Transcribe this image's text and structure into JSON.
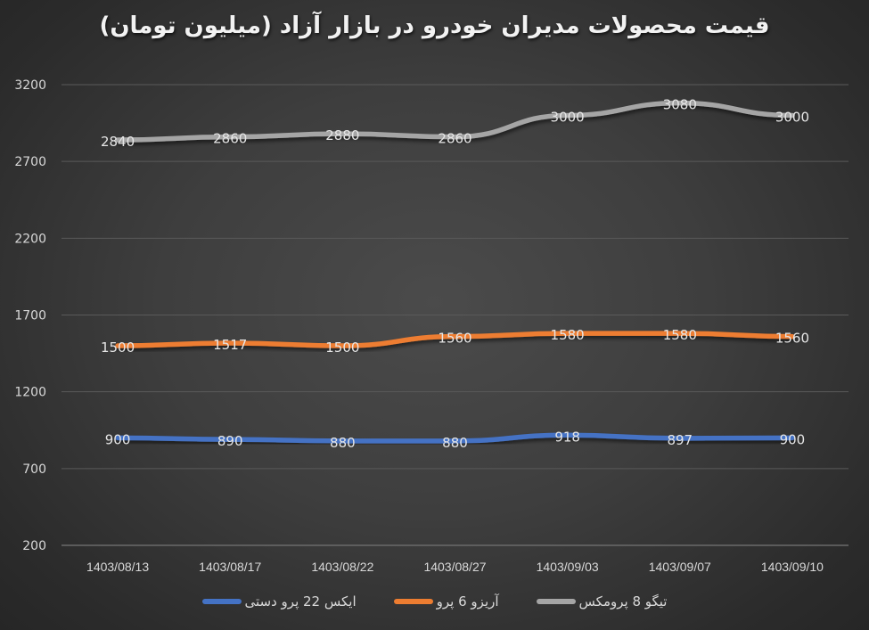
{
  "chart_data": {
    "type": "line",
    "title": "قیمت محصولات مدیران خودرو در بازار آزاد (میلیون تومان)",
    "xlabel": "",
    "ylabel": "",
    "categories": [
      "1403/08/13",
      "1403/08/17",
      "1403/08/22",
      "1403/08/27",
      "1403/09/03",
      "1403/09/07",
      "1403/09/10"
    ],
    "y_ticks": [
      200,
      700,
      1200,
      1700,
      2200,
      2700,
      3200
    ],
    "ylim": [
      200,
      3200
    ],
    "grid": true,
    "legend_position": "bottom",
    "series": [
      {
        "name": "تیگو 8 پرومکس",
        "color": "#a5a5a5",
        "values": [
          2840,
          2860,
          2880,
          2860,
          3000,
          3080,
          3000
        ]
      },
      {
        "name": "آریزو 6 پرو",
        "color": "#ed7d31",
        "values": [
          1500,
          1517,
          1500,
          1560,
          1580,
          1580,
          1560
        ]
      },
      {
        "name": "ایکس 22 پرو دستی",
        "color": "#4472c4",
        "values": [
          900,
          890,
          880,
          880,
          918,
          897,
          900
        ]
      }
    ]
  },
  "legend": [
    {
      "label": "ایکس 22 پرو دستی",
      "color": "#4472c4"
    },
    {
      "label": "آریزو 6 پرو",
      "color": "#ed7d31"
    },
    {
      "label": "تیگو 8 پرومکس",
      "color": "#a5a5a5"
    }
  ]
}
